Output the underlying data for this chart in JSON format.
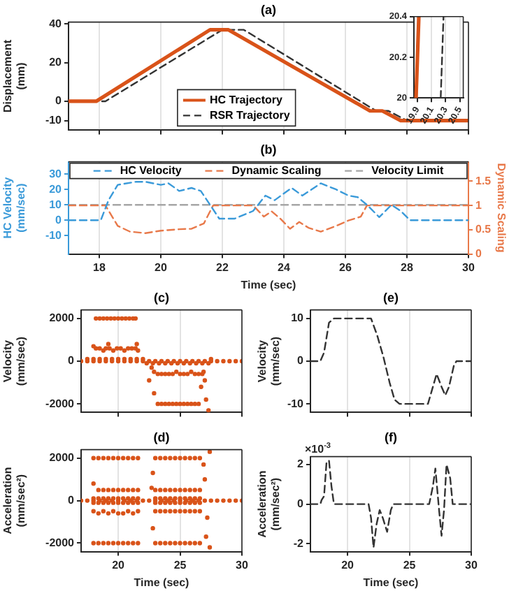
{
  "chart_data": [
    {
      "type": "line",
      "title": "(a)",
      "ylabel": "Displacement (mm)",
      "xlim": [
        17,
        30
      ],
      "xticks": [
        18,
        20,
        22,
        24,
        26,
        28,
        30
      ],
      "ylim": [
        -15,
        41
      ],
      "yticks": [
        -10,
        0,
        20,
        40
      ],
      "grid": "x",
      "tick_labels": "y",
      "legend": "bottom",
      "series": [
        {
          "name": "HC Trajectory",
          "color": "#d95319",
          "line_style": "solid",
          "x": [
            17,
            17.9,
            21.6,
            22.2,
            26.8,
            27.2,
            27.8,
            30
          ],
          "values": [
            0,
            0,
            37,
            37,
            -5,
            -5,
            -10,
            -10
          ]
        },
        {
          "name": "RSR Trajectory",
          "color": "#333333",
          "line_style": "dashed",
          "x": [
            17,
            18.2,
            22.0,
            22.7,
            27.0,
            27.4,
            28.0,
            30
          ],
          "values": [
            0,
            0,
            37,
            37,
            -5,
            -5,
            -10,
            -10
          ]
        }
      ]
    },
    {
      "type": "line",
      "xlim": [
        19.85,
        20.55
      ],
      "xticks": [
        19.9,
        20.1,
        20.3,
        20.5
      ],
      "ylim": [
        20,
        20.4
      ],
      "yticks": [
        20,
        20.2,
        20.4
      ],
      "grid": "x",
      "series": [
        {
          "color": "#d95319",
          "line_style": "solid",
          "x": [
            19.88,
            19.92
          ],
          "values": [
            20,
            20.4
          ]
        },
        {
          "color": "#333333",
          "line_style": "dashed",
          "x": [
            20.23,
            20.27
          ],
          "values": [
            20,
            20.4
          ]
        }
      ]
    },
    {
      "type": "line",
      "title": "(b)",
      "xlabel": "Time (sec)",
      "ylabel": "HC Velocity (mm/sec)",
      "y2label": "Dynamic Scaling",
      "xlim": [
        17,
        30
      ],
      "xticks": [
        18,
        20,
        22,
        24,
        26,
        28,
        30
      ],
      "ylim": [
        -22,
        38
      ],
      "yticks": [
        -10,
        0,
        10,
        20,
        30
      ],
      "y2lim": [
        0,
        1.9
      ],
      "y2ticks": [
        0,
        0.5,
        1,
        1.5
      ],
      "grid": "x",
      "legend": "top",
      "line_style": "dashed",
      "series": [
        {
          "name": "HC Velocity",
          "color": "#3a9ad9",
          "x": [
            17,
            18.05,
            18.3,
            18.6,
            19.2,
            19.5,
            20.0,
            20.25,
            20.6,
            21.0,
            21.3,
            21.6,
            21.9,
            22.4,
            23.0,
            23.4,
            23.7,
            24.25,
            24.6,
            25.2,
            25.7,
            26.1,
            26.4,
            26.7,
            27.1,
            27.5,
            27.8,
            28.1,
            30
          ],
          "values": [
            0,
            0,
            13,
            23,
            25,
            25,
            23,
            24,
            19,
            21,
            19,
            10,
            1,
            1,
            6,
            16,
            13,
            21,
            16,
            24,
            20,
            16,
            15,
            10,
            2,
            10,
            6,
            0,
            0
          ]
        },
        {
          "name": "Dynamic Scaling",
          "color": "#e8794a",
          "axis": "y2",
          "x": [
            17,
            18.2,
            18.6,
            19.0,
            19.5,
            20.0,
            20.6,
            21.0,
            21.4,
            21.7,
            23.0,
            23.35,
            23.6,
            23.9,
            24.2,
            24.5,
            24.8,
            25.2,
            25.7,
            26.1,
            26.5,
            26.7,
            30
          ],
          "values": [
            1,
            1,
            0.58,
            0.46,
            0.43,
            0.48,
            0.51,
            0.52,
            0.63,
            1,
            1,
            0.77,
            0.88,
            0.72,
            0.52,
            0.66,
            0.54,
            0.46,
            0.58,
            0.69,
            0.77,
            1,
            1
          ]
        },
        {
          "name": "Velocity Limit",
          "color": "#a6a6a6",
          "x": [
            17,
            30
          ],
          "values": [
            10,
            10
          ]
        }
      ]
    },
    {
      "type": "scatter",
      "title": "(c)",
      "ylabel": "Velocity (mm/sec)",
      "xlim": [
        17,
        30
      ],
      "xticks": [
        20,
        25,
        30
      ],
      "ylim": [
        -2400,
        2400
      ],
      "yticks": [
        -2000,
        0,
        2000
      ],
      "grid": "x",
      "tick_labels": "y",
      "marker": "circle",
      "series": [
        {
          "color": "#d95319",
          "x": [
            17,
            17.5,
            18,
            18.5,
            19,
            19.5,
            20,
            20.5,
            21,
            21.5,
            22,
            22.5,
            23,
            23.5,
            24,
            24.5,
            25,
            25.5,
            26,
            26.5,
            27,
            27.5,
            28,
            28.5,
            29,
            29.5,
            30,
            18.2,
            18.5,
            18.8,
            19.1,
            19.4,
            19.7,
            20.0,
            20.3,
            20.6,
            20.9,
            21.2,
            21.4,
            18.0,
            18.2,
            18.5,
            18.8,
            19.0,
            19.3,
            19.6,
            19.9,
            20.2,
            20.5,
            20.8,
            21.1,
            21.4,
            21.6,
            19.2,
            21.5,
            17.5,
            18,
            18.5,
            19,
            19.5,
            20,
            20.5,
            21,
            21.5,
            22,
            22.7,
            22.9,
            23.2,
            23.5,
            23.8,
            24.1,
            24.4,
            24.7,
            25.0,
            25.3,
            25.6,
            25.9,
            26.2,
            26.5,
            26.8,
            26.9,
            22.9,
            23.2,
            23.5,
            23.8,
            24.1,
            24.4,
            24.7,
            25.0,
            25.3,
            25.6,
            25.9,
            26.2,
            26.5,
            22.5,
            26.7,
            27.1,
            27.3,
            27.0,
            22.3,
            22.8,
            23.3,
            23.8,
            24.3,
            24.8,
            25.3,
            25.8,
            26.3,
            26.8,
            27.3,
            27.5
          ],
          "values": [
            0,
            0,
            0,
            0,
            0,
            0,
            0,
            0,
            0,
            0,
            0,
            0,
            0,
            0,
            0,
            0,
            0,
            0,
            0,
            0,
            0,
            0,
            0,
            0,
            0,
            0,
            0,
            2000,
            2000,
            2000,
            2000,
            2000,
            2000,
            2000,
            2000,
            2000,
            2000,
            2000,
            2000,
            700,
            600,
            600,
            500,
            600,
            600,
            500,
            600,
            600,
            500,
            600,
            600,
            600,
            500,
            800,
            800,
            100,
            100,
            100,
            100,
            100,
            100,
            100,
            100,
            100,
            100,
            -300,
            -500,
            -600,
            -600,
            -600,
            -600,
            -600,
            -500,
            -600,
            -600,
            -600,
            -500,
            -600,
            -600,
            -600,
            -500,
            -1500,
            -2000,
            -2000,
            -2000,
            -2000,
            -2000,
            -2000,
            -2000,
            -2000,
            -2000,
            -2000,
            -2000,
            -2000,
            -900,
            -1200,
            -1800,
            -2300,
            -900,
            -100,
            -100,
            -100,
            -100,
            -100,
            -100,
            -100,
            -100,
            -100,
            -100,
            -100,
            100
          ]
        }
      ]
    },
    {
      "type": "line",
      "title": "(e)",
      "ylabel": "Velocity (mm/sec)",
      "xlim": [
        17,
        30
      ],
      "xticks": [
        20,
        25,
        30
      ],
      "ylim": [
        -12,
        12
      ],
      "yticks": [
        -10,
        0,
        10
      ],
      "grid": "x",
      "tick_labels": "y",
      "line_style": "dashed",
      "series": [
        {
          "color": "#333333",
          "x": [
            17,
            17.8,
            18.1,
            18.5,
            18.9,
            21.9,
            22.4,
            22.9,
            23.4,
            23.8,
            24.2,
            26.5,
            26.8,
            27.2,
            27.6,
            27.9,
            28.2,
            28.6,
            28.8,
            30
          ],
          "values": [
            0,
            0,
            2,
            9,
            10,
            10,
            6,
            1,
            -5,
            -9,
            -10,
            -10,
            -7,
            -3,
            -6,
            -8,
            -6,
            -1,
            0,
            0
          ]
        }
      ]
    },
    {
      "type": "scatter",
      "title": "(d)",
      "xlabel": "Time (sec)",
      "ylabel": "Acceleration (mm/sec²)",
      "xlim": [
        17,
        30
      ],
      "xticks": [
        20,
        25,
        30
      ],
      "ylim": [
        -2400,
        2400
      ],
      "yticks": [
        -2000,
        0,
        2000
      ],
      "grid": "x",
      "marker": "circle",
      "series": [
        {
          "color": "#d95319",
          "x": [
            17,
            17.5,
            18,
            18.5,
            19,
            19.5,
            20,
            20.5,
            21,
            21.5,
            22,
            22.5,
            23,
            23.5,
            24,
            24.5,
            25,
            25.5,
            26,
            26.5,
            27,
            27.5,
            28,
            28.5,
            29,
            29.5,
            30,
            18.0,
            18.4,
            18.8,
            19.2,
            19.6,
            20.0,
            20.4,
            20.8,
            21.2,
            21.6,
            18.0,
            18.4,
            18.8,
            19.2,
            19.6,
            20.0,
            20.4,
            20.8,
            21.2,
            21.6,
            18.0,
            18.4,
            18.8,
            19.2,
            19.6,
            20.0,
            20.4,
            20.8,
            21.2,
            21.6,
            18.0,
            18.4,
            18.8,
            19.2,
            19.6,
            20.0,
            20.4,
            20.8,
            21.2,
            21.6,
            18.0,
            18.4,
            18.8,
            19.2,
            19.6,
            20.0,
            20.4,
            20.8,
            21.2,
            21.6,
            18.0,
            18.4,
            18.8,
            19.2,
            19.6,
            20.0,
            20.4,
            20.8,
            21.2,
            21.6,
            23.0,
            23.4,
            23.8,
            24.2,
            24.6,
            25.0,
            25.4,
            25.8,
            26.2,
            26.6,
            23.0,
            23.4,
            23.8,
            24.2,
            24.6,
            25.0,
            25.4,
            25.8,
            26.2,
            26.6,
            23.0,
            23.4,
            23.8,
            24.2,
            24.6,
            25.0,
            25.4,
            25.8,
            26.2,
            26.6,
            23.0,
            23.4,
            23.8,
            24.2,
            24.6,
            25.0,
            25.4,
            25.8,
            26.2,
            26.6,
            23.0,
            23.4,
            23.8,
            24.2,
            24.6,
            25.0,
            25.4,
            25.8,
            26.2,
            26.6,
            23.0,
            23.4,
            23.8,
            24.2,
            24.6,
            25.0,
            25.4,
            25.8,
            26.2,
            26.6,
            22.7,
            22.8,
            22.8,
            26.9,
            27.1,
            27.4,
            27.4,
            27.0,
            27.2
          ],
          "values": [
            0,
            0,
            0,
            0,
            0,
            0,
            0,
            0,
            0,
            0,
            0,
            0,
            0,
            0,
            0,
            0,
            0,
            0,
            0,
            0,
            0,
            0,
            0,
            0,
            0,
            0,
            0,
            2000,
            2000,
            2000,
            2000,
            2000,
            2000,
            2000,
            2000,
            2000,
            2000,
            800,
            500,
            500,
            500,
            500,
            500,
            500,
            500,
            500,
            500,
            100,
            100,
            100,
            100,
            100,
            100,
            100,
            100,
            100,
            100,
            -100,
            -100,
            -100,
            -100,
            -100,
            -100,
            -100,
            -100,
            -100,
            -100,
            -500,
            -600,
            -500,
            -600,
            -500,
            -600,
            -600,
            -500,
            -600,
            -500,
            -2000,
            -2000,
            -2000,
            -2000,
            -2000,
            -2000,
            -2000,
            -2000,
            -2000,
            -2000,
            2000,
            2000,
            2000,
            2000,
            2000,
            2000,
            2000,
            2000,
            2000,
            2000,
            500,
            500,
            500,
            500,
            500,
            500,
            500,
            500,
            500,
            500,
            100,
            100,
            100,
            100,
            100,
            100,
            100,
            100,
            100,
            100,
            -100,
            -100,
            -100,
            -100,
            -100,
            -100,
            -100,
            -100,
            -100,
            -100,
            -500,
            -500,
            -500,
            -500,
            -500,
            -500,
            -500,
            -500,
            -500,
            -500,
            -2000,
            -2000,
            -2000,
            -2000,
            -2000,
            -2000,
            -2000,
            -2000,
            -2000,
            -2000,
            600,
            1300,
            -1300,
            1700,
            -1700,
            2300,
            -2200,
            1000,
            -800
          ]
        }
      ]
    },
    {
      "type": "line",
      "title": "(f)",
      "xlabel": "Time (sec)",
      "ylabel": "Acceleration (mm/sec²)",
      "annotations": [
        "×10$^{-3}$"
      ],
      "xlim": [
        17,
        30
      ],
      "xticks": [
        20,
        25,
        30
      ],
      "ylim": [
        -2.4,
        2.4
      ],
      "yticks": [
        -2,
        0,
        2
      ],
      "grid": "x",
      "line_style": "dashed",
      "series": [
        {
          "color": "#333333",
          "x": [
            17,
            17.8,
            17.9,
            18.1,
            18.3,
            18.5,
            18.7,
            18.9,
            21.7,
            21.9,
            22.1,
            22.35,
            22.6,
            22.85,
            23.2,
            23.5,
            23.7,
            26.6,
            26.9,
            27.1,
            27.4,
            27.6,
            27.8,
            28.0,
            28.3,
            28.5,
            30
          ],
          "values": [
            0,
            0,
            0.2,
            0.4,
            2.1,
            2.2,
            0.9,
            0,
            0,
            -0.7,
            -2.2,
            -1,
            -0.3,
            -0.7,
            -1.4,
            -0.3,
            0,
            0,
            0.9,
            1.8,
            -0.3,
            -1.6,
            -0.3,
            2,
            1.3,
            0,
            0
          ]
        }
      ]
    }
  ]
}
